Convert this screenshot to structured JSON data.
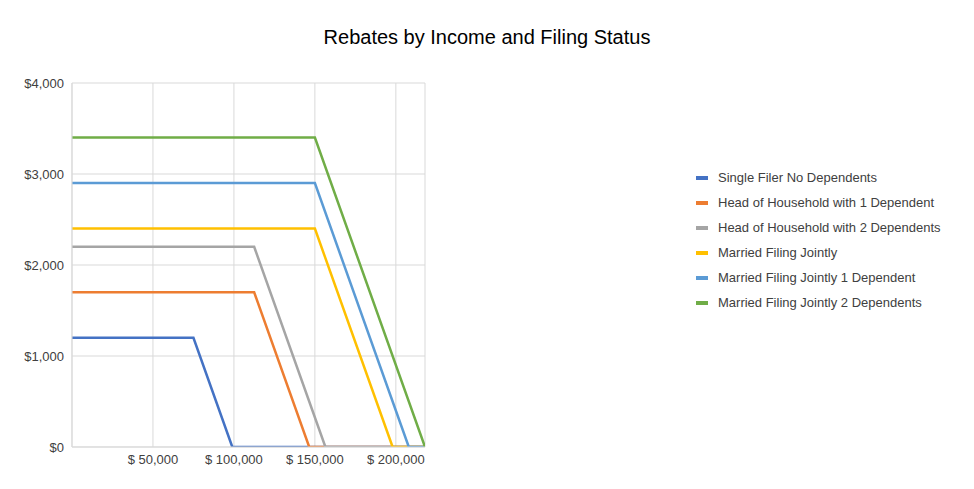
{
  "chart_data": {
    "type": "line",
    "title": "Rebates by Income and Filing Status",
    "xlim": [
      0,
      218000
    ],
    "xticks": [
      {
        "value": 50000,
        "label": "$ 50,000"
      },
      {
        "value": 100000,
        "label": "$ 100,000"
      },
      {
        "value": 150000,
        "label": "$ 150,000"
      },
      {
        "value": 200000,
        "label": "$ 200,000"
      }
    ],
    "ylim": [
      0,
      4000
    ],
    "yticks": [
      {
        "value": 0,
        "label": "$0"
      },
      {
        "value": 1000,
        "label": "$1,000"
      },
      {
        "value": 2000,
        "label": "$2,000"
      },
      {
        "value": 3000,
        "label": "$3,000"
      },
      {
        "value": 4000,
        "label": "$4,000"
      }
    ],
    "grid": true,
    "legend": "right",
    "series": [
      {
        "name": "Single Filer No Dependents",
        "color": "#4472c4",
        "x": [
          0,
          75000,
          99000,
          218000
        ],
        "values": [
          1200,
          1200,
          0,
          0
        ]
      },
      {
        "name": "Head of Household with 1 Dependent",
        "color": "#ed7d31",
        "x": [
          0,
          112500,
          146500,
          218000
        ],
        "values": [
          1700,
          1700,
          0,
          0
        ]
      },
      {
        "name": "Head of Household with 2 Dependents",
        "color": "#a5a5a5",
        "x": [
          0,
          112500,
          156500,
          218000
        ],
        "values": [
          2200,
          2200,
          0,
          0
        ]
      },
      {
        "name": "Married Filing Jointly",
        "color": "#ffc000",
        "x": [
          0,
          150000,
          198000,
          218000
        ],
        "values": [
          2400,
          2400,
          0,
          0
        ]
      },
      {
        "name": "Married Filing Jointly 1 Dependent",
        "color": "#5b9bd5",
        "x": [
          0,
          150000,
          208000,
          218000
        ],
        "values": [
          2900,
          2900,
          0,
          0
        ]
      },
      {
        "name": "Married Filing Jointly 2 Dependents",
        "color": "#70ad47",
        "x": [
          0,
          150000,
          218000
        ],
        "values": [
          3400,
          3400,
          0
        ]
      }
    ]
  }
}
